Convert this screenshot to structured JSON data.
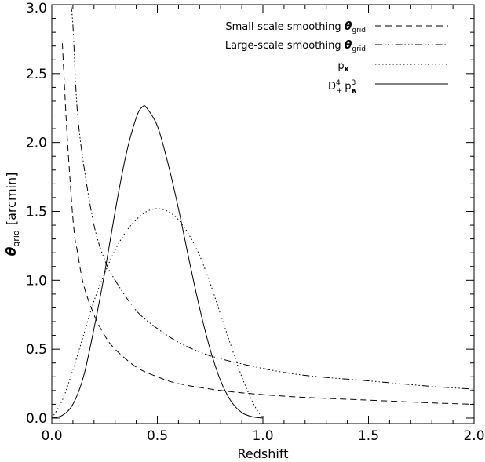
{
  "chart_data": {
    "type": "line",
    "title": "",
    "xlabel": "Redshift",
    "ylabel": {
      "symbol": "θ",
      "symbol_sub": "grid",
      "unit": "[arcmin]"
    },
    "xlim": [
      0.0,
      2.0
    ],
    "ylim": [
      -0.04,
      3.0
    ],
    "x_ticks": [
      "0.0",
      "0.5",
      "1.0",
      "1.5",
      "2.0"
    ],
    "x_tick_values": [
      0.0,
      0.5,
      1.0,
      1.5,
      2.0
    ],
    "y_ticks": [
      "0.0",
      "0.5",
      "1.0",
      "1.5",
      "2.0",
      "2.5",
      "3.0"
    ],
    "y_tick_values": [
      0.0,
      0.5,
      1.0,
      1.5,
      2.0,
      2.5,
      3.0
    ],
    "grid": false,
    "legend_position": "top-right",
    "series": [
      {
        "name": "Small-scale smoothing θgrid",
        "legend": {
          "main": "Small-scale smoothing ",
          "symbol": "θ",
          "sub": "grid"
        },
        "dash": "dashed",
        "x": [
          0.05,
          0.07,
          0.09,
          0.1,
          0.11,
          0.12,
          0.15,
          0.2,
          0.25,
          0.3,
          0.4,
          0.5,
          0.6,
          0.8,
          1.0,
          1.2,
          1.5,
          1.8,
          2.0
        ],
        "y": [
          2.72,
          2.12,
          1.65,
          1.45,
          1.3,
          1.22,
          0.97,
          0.75,
          0.6,
          0.5,
          0.37,
          0.3,
          0.25,
          0.2,
          0.17,
          0.15,
          0.13,
          0.11,
          0.1
        ]
      },
      {
        "name": "Large-scale smoothing θgrid",
        "legend": {
          "main": "Large-scale smoothing ",
          "symbol": "θ",
          "sub": "grid"
        },
        "dash": "dash-dot-dot",
        "x": [
          0.09,
          0.1,
          0.12,
          0.15,
          0.2,
          0.25,
          0.3,
          0.4,
          0.5,
          0.6,
          0.7,
          0.8,
          1.0,
          1.2,
          1.5,
          1.8,
          2.0
        ],
        "y": [
          3.0,
          2.85,
          2.25,
          1.85,
          1.4,
          1.15,
          1.0,
          0.78,
          0.65,
          0.55,
          0.48,
          0.43,
          0.36,
          0.31,
          0.27,
          0.23,
          0.21
        ]
      },
      {
        "name": "pκ",
        "legend": {
          "main": "p",
          "symbol_sub": "κ"
        },
        "dash": "dotted",
        "x": [
          0.0,
          0.05,
          0.1,
          0.15,
          0.2,
          0.25,
          0.3,
          0.35,
          0.4,
          0.45,
          0.5,
          0.55,
          0.6,
          0.65,
          0.7,
          0.75,
          0.8,
          0.85,
          0.9,
          0.95,
          0.98,
          1.0
        ],
        "y": [
          0.0,
          0.13,
          0.35,
          0.6,
          0.85,
          1.05,
          1.22,
          1.35,
          1.44,
          1.5,
          1.52,
          1.5,
          1.44,
          1.33,
          1.18,
          0.98,
          0.75,
          0.52,
          0.3,
          0.12,
          0.04,
          0.0
        ]
      },
      {
        "name": "D+4 pκ3",
        "legend": {
          "main": "D",
          "sup1": "4",
          "sub1": "+",
          "main2": "p",
          "sup2": "3",
          "sub2": "κ"
        },
        "dash": "solid",
        "x": [
          0.0,
          0.05,
          0.1,
          0.15,
          0.2,
          0.25,
          0.3,
          0.35,
          0.4,
          0.43,
          0.45,
          0.5,
          0.55,
          0.6,
          0.65,
          0.7,
          0.75,
          0.8,
          0.85,
          0.9,
          0.95,
          1.0
        ],
        "y": [
          0.0,
          0.02,
          0.1,
          0.3,
          0.65,
          1.05,
          1.5,
          1.9,
          2.18,
          2.26,
          2.25,
          2.12,
          1.85,
          1.52,
          1.15,
          0.8,
          0.5,
          0.27,
          0.12,
          0.04,
          0.01,
          0.0
        ]
      }
    ]
  }
}
